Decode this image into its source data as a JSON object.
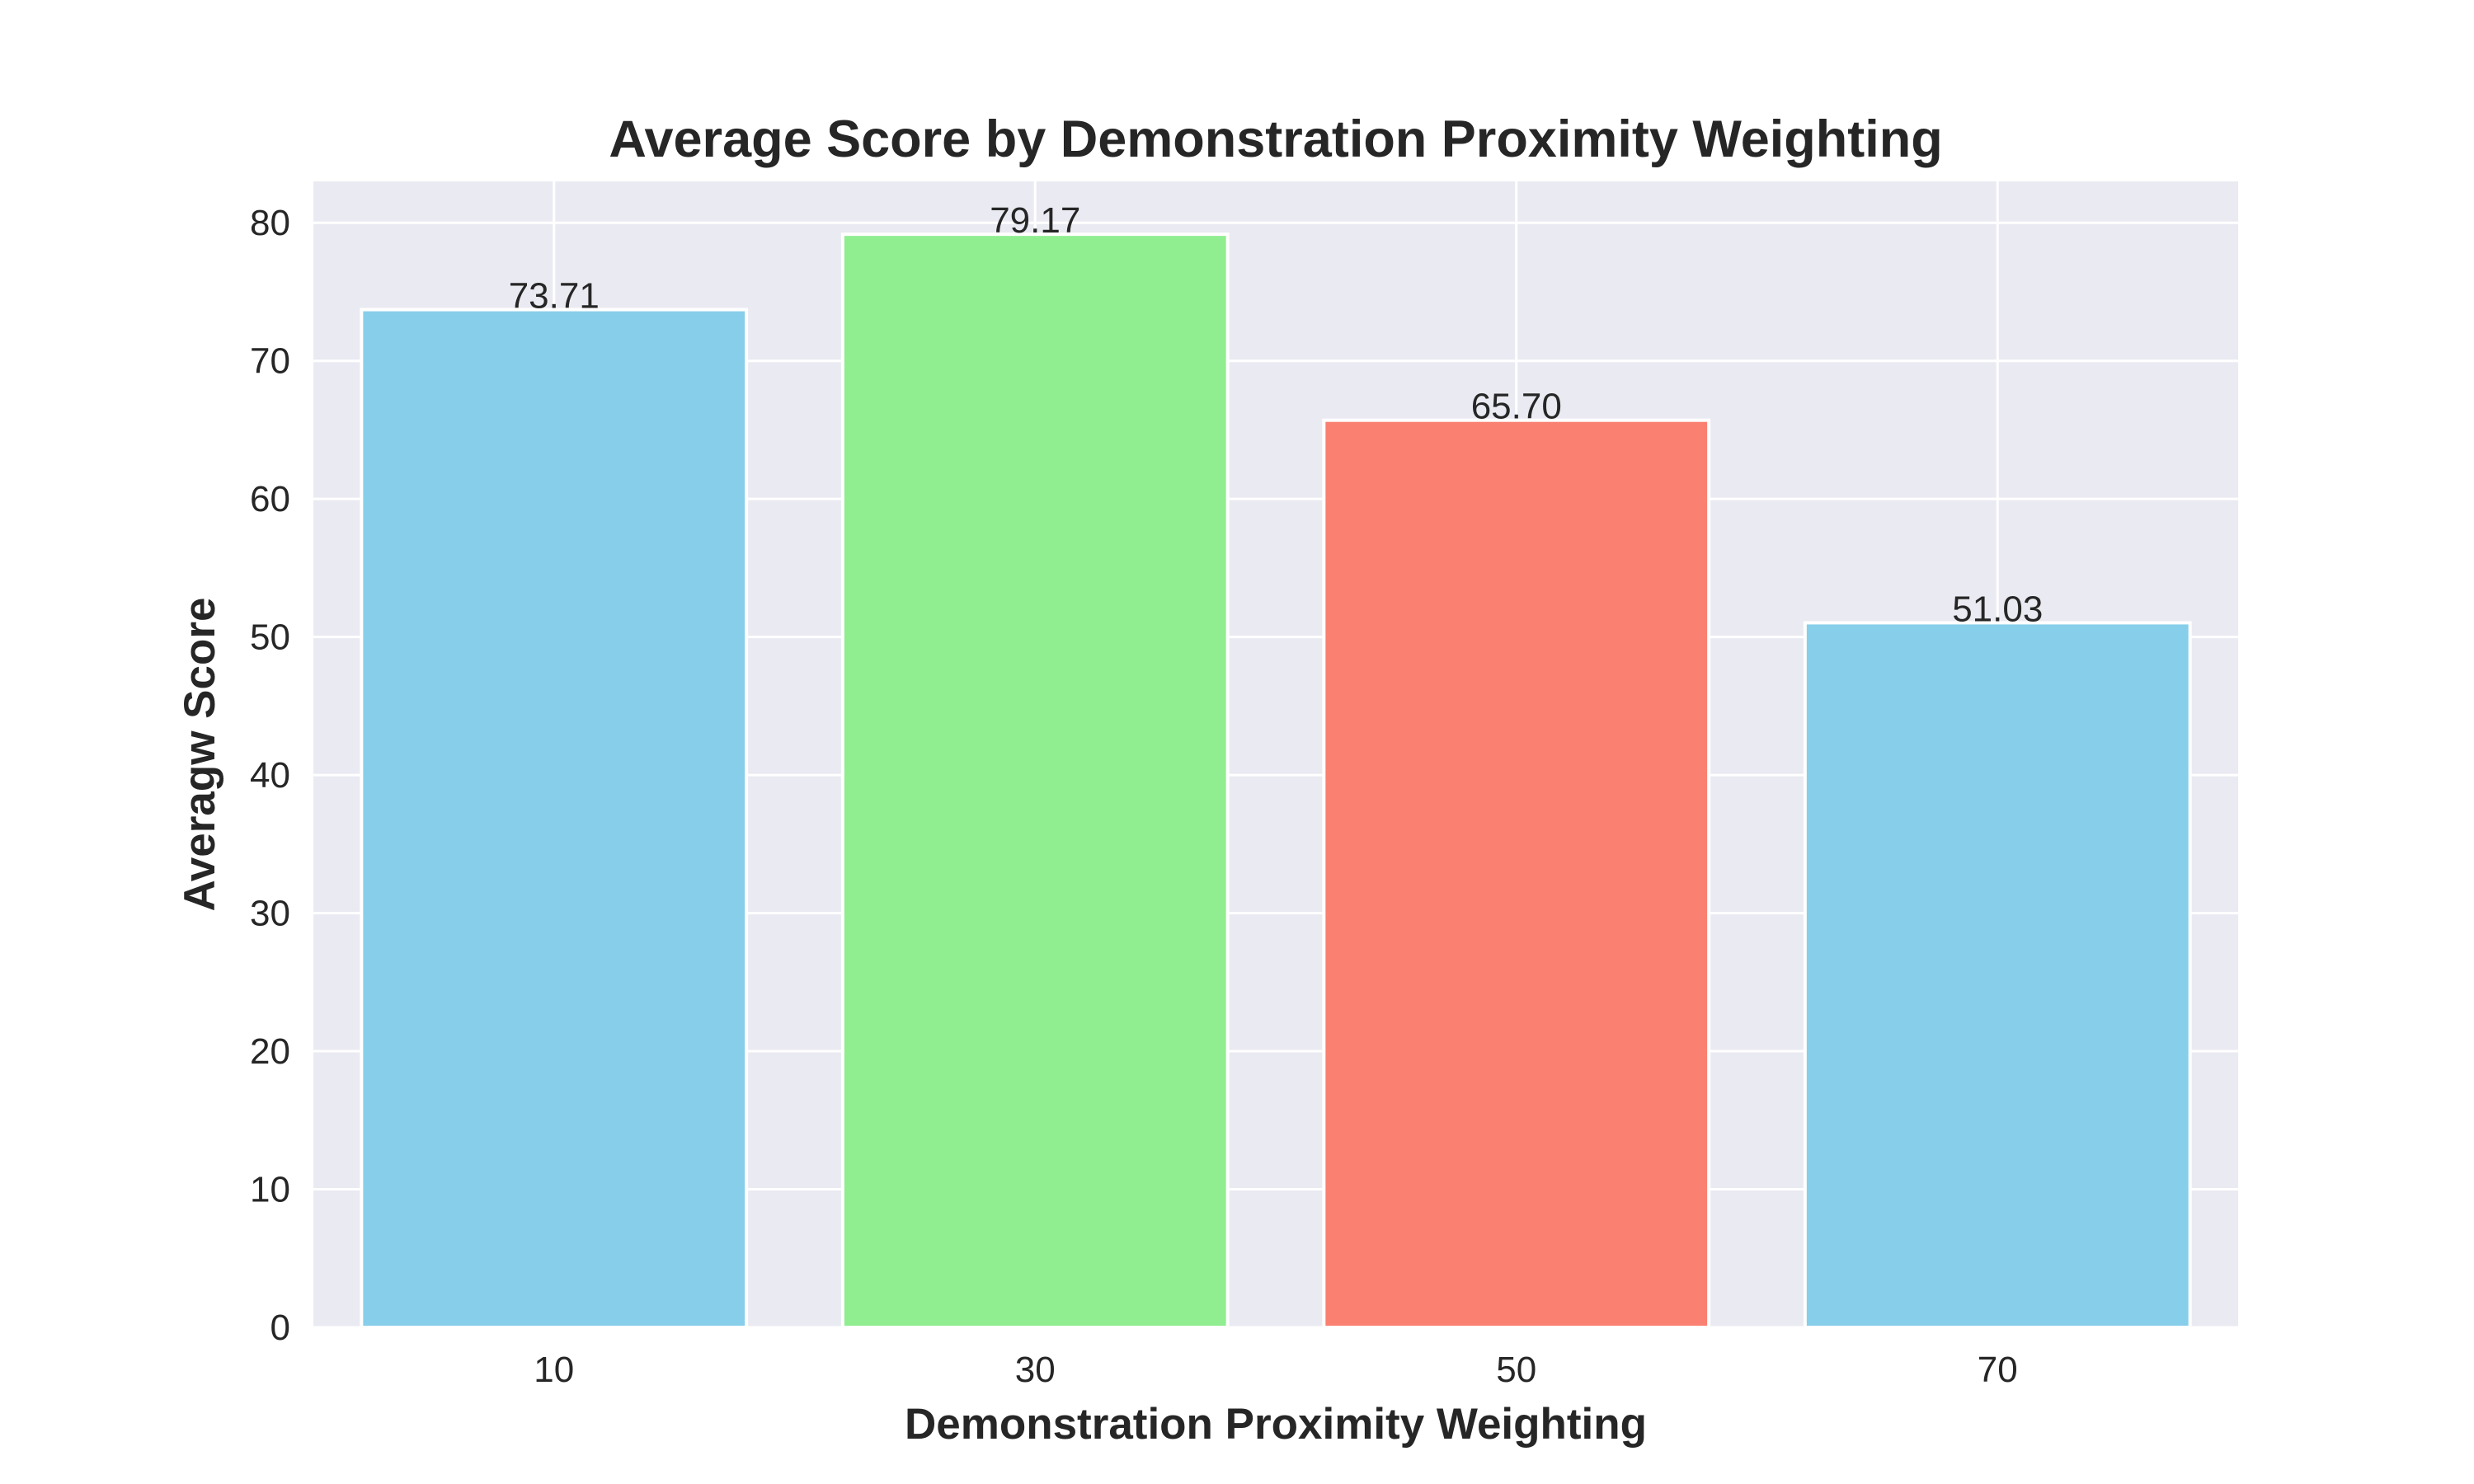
{
  "chart_data": {
    "type": "bar",
    "title": "Average Score by Demonstration Proximity Weighting",
    "xlabel": "Demonstration Proximity Weighting",
    "ylabel": "Averagw Score",
    "categories": [
      "10",
      "30",
      "50",
      "70"
    ],
    "values": [
      73.71,
      79.17,
      65.7,
      51.03
    ],
    "value_labels": [
      "73.71",
      "79.17",
      "65.70",
      "51.03"
    ],
    "bar_colors": [
      "#87ceeb",
      "#90ee90",
      "#fa8072",
      "#87ceeb"
    ],
    "ylim": [
      0,
      83
    ],
    "yticks": [
      0,
      10,
      20,
      30,
      40,
      50,
      60,
      70,
      80
    ],
    "grid": true,
    "legend": "none",
    "colors": {
      "plot_background": "#eaeaf2",
      "grid": "#ffffff",
      "text": "#262626"
    }
  }
}
